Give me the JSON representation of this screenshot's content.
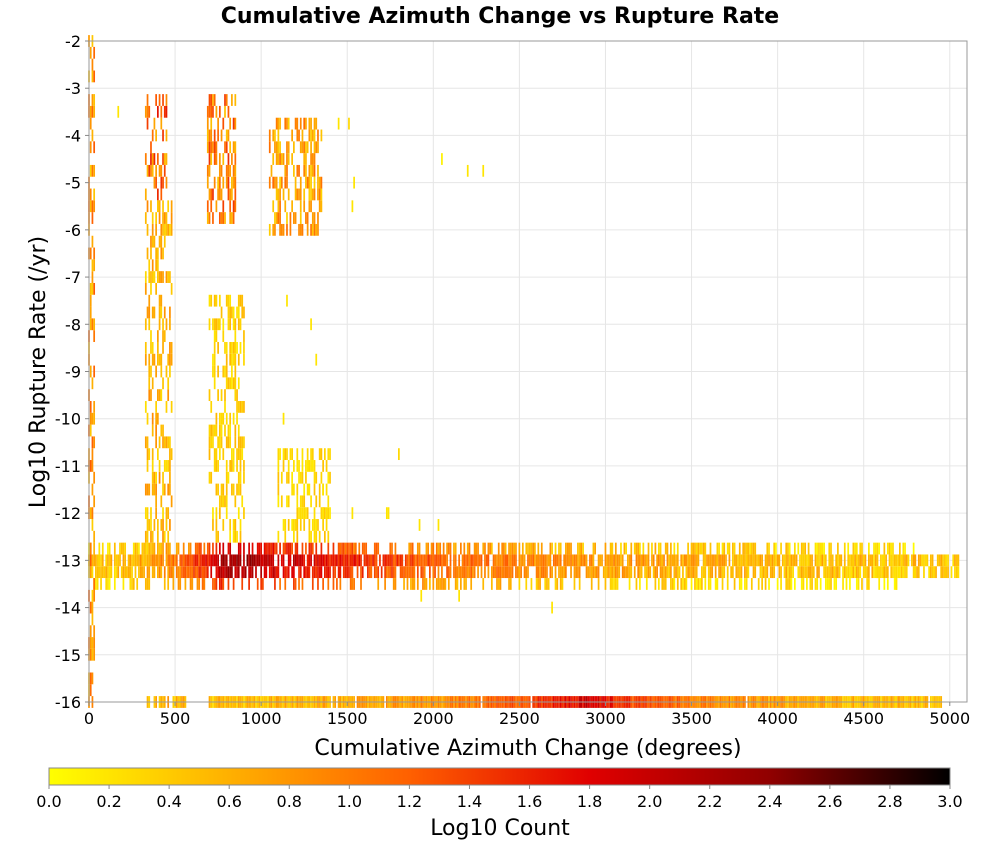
{
  "chart_data": {
    "type": "heatmap",
    "title": "Cumulative Azimuth Change vs Rupture Rate",
    "xlabel": "Cumulative Azimuth Change (degrees)",
    "ylabel": "Log10 Rupture Rate (/yr)",
    "xlim": [
      0,
      5100
    ],
    "ylim": [
      -16,
      -2
    ],
    "xticks": [
      "0",
      "500",
      "1000",
      "1500",
      "2000",
      "2500",
      "3000",
      "3500",
      "4000",
      "4500",
      "5000"
    ],
    "yticks": [
      "-2",
      "-3",
      "-4",
      "-5",
      "-6",
      "-7",
      "-8",
      "-9",
      "-10",
      "-11",
      "-12",
      "-13",
      "-14",
      "-15",
      "-16"
    ],
    "grid": true,
    "bin_width_x": 10,
    "bin_height_y": 0.25,
    "colorbar": {
      "label": "Log10 Count",
      "range": [
        0.0,
        3.0
      ],
      "ticks": [
        "0.0",
        "0.2",
        "0.4",
        "0.6",
        "0.8",
        "1.0",
        "1.2",
        "1.4",
        "1.6",
        "1.8",
        "2.0",
        "2.2",
        "2.4",
        "2.6",
        "2.8",
        "3.0"
      ],
      "colors": [
        "#ffff00",
        "#ffb000",
        "#ff6000",
        "#e00000",
        "#900000",
        "#000000"
      ]
    },
    "bands": [
      {
        "y": -13.0,
        "x_start": 0,
        "x_end": 5050,
        "peak_x": 800,
        "peak_value": 2.4,
        "tail_value": 0.35,
        "density": 0.85
      },
      {
        "y": -13.25,
        "x_start": 0,
        "x_end": 5050,
        "peak_x": 800,
        "peak_value": 2.2,
        "tail_value": 0.3,
        "density": 0.75
      },
      {
        "y": -12.75,
        "x_start": 0,
        "x_end": 4800,
        "peak_x": 800,
        "peak_value": 1.9,
        "tail_value": 0.15,
        "density": 0.55
      },
      {
        "y": -13.5,
        "x_start": 0,
        "x_end": 4700,
        "peak_x": 800,
        "peak_value": 1.6,
        "tail_value": 0.1,
        "density": 0.4
      },
      {
        "y": -16.0,
        "x_start": 340,
        "x_end": 560,
        "peak_x": 450,
        "peak_value": 0.7,
        "tail_value": 0.5,
        "density": 0.8
      },
      {
        "y": -16.0,
        "x_start": 700,
        "x_end": 4950,
        "peak_x": 2900,
        "peak_value": 1.9,
        "tail_value": 0.4,
        "density": 0.98
      }
    ],
    "clusters": [
      {
        "x": [
          0,
          30
        ],
        "y": [
          -16,
          -2
        ],
        "value": 1.0
      },
      {
        "x": [
          330,
          450
        ],
        "y": [
          -5.5,
          -3.25
        ],
        "value": 1.4
      },
      {
        "x": [
          330,
          480
        ],
        "y": [
          -12.5,
          -5.5
        ],
        "value": 0.7
      },
      {
        "x": [
          690,
          850
        ],
        "y": [
          -5.75,
          -3.25
        ],
        "value": 1.2
      },
      {
        "x": [
          700,
          900
        ],
        "y": [
          -12.5,
          -7.5
        ],
        "value": 0.45
      },
      {
        "x": [
          1050,
          1350
        ],
        "y": [
          -6.0,
          -3.75
        ],
        "value": 0.9
      },
      {
        "x": [
          1100,
          1400
        ],
        "y": [
          -12.5,
          -10.75
        ],
        "value": 0.4
      }
    ],
    "cells": [
      {
        "x": 170,
        "y": -3.5,
        "v": 0.2
      },
      {
        "x": 1450,
        "y": -3.75,
        "v": 0.2
      },
      {
        "x": 1510,
        "y": -3.75,
        "v": 0.3
      },
      {
        "x": 2050,
        "y": -4.5,
        "v": 0.1
      },
      {
        "x": 2200,
        "y": -4.75,
        "v": 0.2
      },
      {
        "x": 2290,
        "y": -4.75,
        "v": 0.2
      },
      {
        "x": 1540,
        "y": -5.0,
        "v": 0.2
      },
      {
        "x": 1530,
        "y": -5.5,
        "v": 0.2
      },
      {
        "x": 1150,
        "y": -7.5,
        "v": 0.2
      },
      {
        "x": 1290,
        "y": -8.0,
        "v": 0.2
      },
      {
        "x": 1320,
        "y": -8.75,
        "v": 0.2
      },
      {
        "x": 1130,
        "y": -10.0,
        "v": 0.2
      },
      {
        "x": 1800,
        "y": -10.75,
        "v": 0.3
      },
      {
        "x": 1360,
        "y": -11.5,
        "v": 0.2
      },
      {
        "x": 1360,
        "y": -12.0,
        "v": 0.2
      },
      {
        "x": 1530,
        "y": -12.0,
        "v": 0.2
      },
      {
        "x": 1730,
        "y": -12.0,
        "v": 0.2
      },
      {
        "x": 1740,
        "y": -12.0,
        "v": 0.2
      },
      {
        "x": 1920,
        "y": -12.25,
        "v": 0.2
      },
      {
        "x": 2030,
        "y": -12.25,
        "v": 0.2
      },
      {
        "x": 1930,
        "y": -13.75,
        "v": 0.2
      },
      {
        "x": 2150,
        "y": -13.75,
        "v": 0.2
      },
      {
        "x": 2690,
        "y": -14.0,
        "v": 0.2
      },
      {
        "x": 5030,
        "y": -13.25,
        "v": 0.3
      },
      {
        "x": 4690,
        "y": -13.5,
        "v": 0.2
      },
      {
        "x": 4580,
        "y": -13.25,
        "v": 0.3
      },
      {
        "x": 4430,
        "y": -13.25,
        "v": 0.2
      }
    ]
  }
}
